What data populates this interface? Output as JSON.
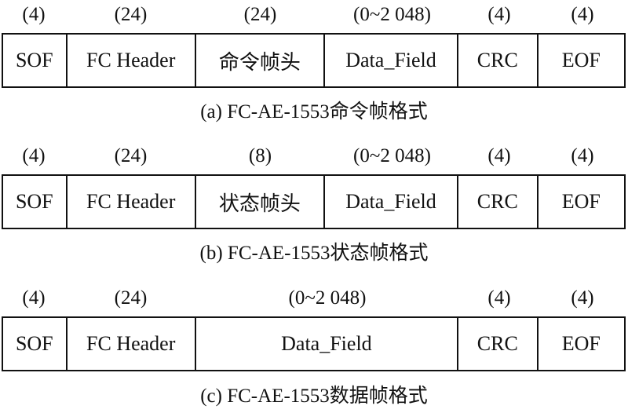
{
  "frames": [
    {
      "sizes": [
        "(4)",
        "(24)",
        "(24)",
        "(0~2 048)",
        "(4)",
        "(4)"
      ],
      "fields": [
        "SOF",
        "FC Header",
        "命令帧头",
        "Data_Field",
        "CRC",
        "EOF"
      ],
      "caption": "(a) FC-AE-1553命令帧格式"
    },
    {
      "sizes": [
        "(4)",
        "(24)",
        "(8)",
        "(0~2 048)",
        "(4)",
        "(4)"
      ],
      "fields": [
        "SOF",
        "FC Header",
        "状态帧头",
        "Data_Field",
        "CRC",
        "EOF"
      ],
      "caption": "(b) FC-AE-1553状态帧格式"
    },
    {
      "sizes": [
        "(4)",
        "(24)",
        "(0~2 048)",
        "(4)",
        "(4)"
      ],
      "fields": [
        "SOF",
        "FC Header",
        "Data_Field",
        "CRC",
        "EOF"
      ],
      "caption": "(c) FC-AE-1553数据帧格式"
    }
  ]
}
